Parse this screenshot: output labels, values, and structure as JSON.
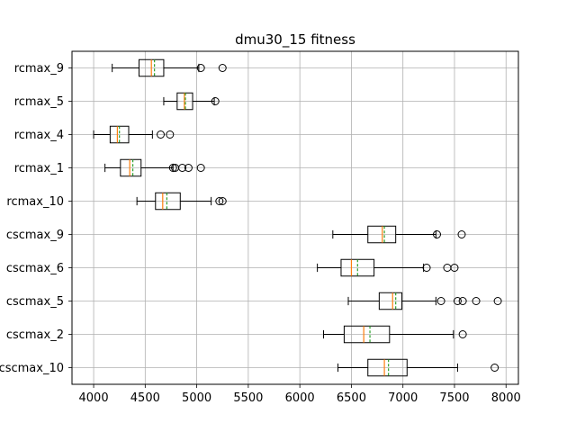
{
  "chart_data": {
    "type": "boxplot",
    "orientation": "horizontal",
    "title": "dmu30_15 fitness",
    "xlabel": "",
    "ylabel": "",
    "xlim": [
      3790,
      8120
    ],
    "xticks": [
      4000,
      4500,
      5000,
      5500,
      6000,
      6500,
      7000,
      7500,
      8000
    ],
    "xtick_labels": [
      "4000",
      "4500",
      "5000",
      "5500",
      "6000",
      "6500",
      "7000",
      "7500",
      "8000"
    ],
    "grid": true,
    "box_color": "#000000",
    "median_color": "#ff7f0e",
    "mean_color": "#2ca02c",
    "mean_style": "dashed",
    "categories": [
      "rcmax_9",
      "rcmax_5",
      "rcmax_4",
      "rcmax_1",
      "rcmax_10",
      "cscmax_9",
      "cscmax_6",
      "cscmax_5",
      "cscmax_2",
      "cscmax_10"
    ],
    "boxes": [
      {
        "label": "rcmax_9",
        "whislo": 4180,
        "q1": 4440,
        "med": 4560,
        "mean": 4590,
        "q3": 4680,
        "whishi": 5020,
        "fliers": [
          5040,
          5250
        ]
      },
      {
        "label": "rcmax_5",
        "whislo": 4680,
        "q1": 4810,
        "med": 4880,
        "mean": 4890,
        "q3": 4960,
        "whishi": 5170,
        "fliers": [
          5180
        ]
      },
      {
        "label": "rcmax_4",
        "whislo": 4000,
        "q1": 4160,
        "med": 4230,
        "mean": 4250,
        "q3": 4340,
        "whishi": 4570,
        "fliers": [
          4650,
          4740
        ]
      },
      {
        "label": "rcmax_1",
        "whislo": 4110,
        "q1": 4260,
        "med": 4350,
        "mean": 4380,
        "q3": 4460,
        "whishi": 4770,
        "fliers": [
          4770,
          4790,
          4860,
          4920,
          5040
        ]
      },
      {
        "label": "rcmax_10",
        "whislo": 4420,
        "q1": 4600,
        "med": 4670,
        "mean": 4710,
        "q3": 4840,
        "whishi": 5140,
        "fliers": [
          5220,
          5250
        ]
      },
      {
        "label": "cscmax_9",
        "whislo": 6320,
        "q1": 6660,
        "med": 6800,
        "mean": 6820,
        "q3": 6930,
        "whishi": 7320,
        "fliers": [
          7330,
          7570
        ]
      },
      {
        "label": "cscmax_6",
        "whislo": 6170,
        "q1": 6400,
        "med": 6500,
        "mean": 6560,
        "q3": 6720,
        "whishi": 7200,
        "fliers": [
          7230,
          7430,
          7500
        ]
      },
      {
        "label": "cscmax_5",
        "whislo": 6470,
        "q1": 6770,
        "med": 6900,
        "mean": 6930,
        "q3": 6990,
        "whishi": 7320,
        "fliers": [
          7370,
          7530,
          7580,
          7710,
          7920
        ]
      },
      {
        "label": "cscmax_2",
        "whislo": 6230,
        "q1": 6430,
        "med": 6620,
        "mean": 6680,
        "q3": 6870,
        "whishi": 7490,
        "fliers": [
          7580
        ]
      },
      {
        "label": "cscmax_10",
        "whislo": 6370,
        "q1": 6660,
        "med": 6820,
        "mean": 6860,
        "q3": 7040,
        "whishi": 7530,
        "fliers": [
          7890
        ]
      }
    ]
  }
}
